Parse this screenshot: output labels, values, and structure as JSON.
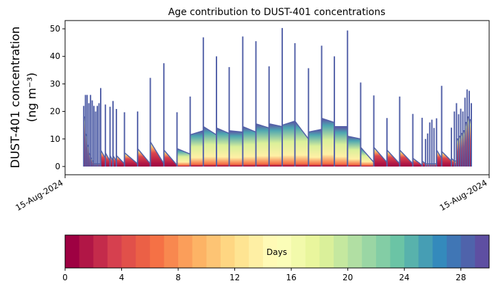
{
  "chart_data": {
    "type": "area",
    "title": "Age contribution to DUST-401 concentrations",
    "ylabel_line1": "DUST-401 concentration",
    "ylabel_line2": "(ng m⁻³)",
    "xlabel": "",
    "xlim": [
      0,
      100
    ],
    "ylim": [
      -3,
      53
    ],
    "yticks": [
      "0",
      "10",
      "20",
      "30",
      "40",
      "50"
    ],
    "ytick_values": [
      0,
      10,
      20,
      30,
      40,
      50
    ],
    "xticks": [
      "15-Aug-2024",
      "15-Aug-2024"
    ],
    "xtick_values": [
      0,
      100
    ],
    "grid": false,
    "series_note_spikes": [
      {
        "x": 4.4,
        "peak": 22,
        "bg_before": 19,
        "bg_after": 18,
        "mix": "young"
      },
      {
        "x": 4.8,
        "peak": 26,
        "bg_before": 18,
        "bg_after": 12,
        "mix": "young"
      },
      {
        "x": 5.2,
        "peak": 26,
        "bg_before": 11,
        "bg_after": 8,
        "mix": "young"
      },
      {
        "x": 5.6,
        "peak": 23,
        "bg_before": 7,
        "bg_after": 5,
        "mix": "young"
      },
      {
        "x": 6.0,
        "peak": 26,
        "bg_before": 4,
        "bg_after": 3,
        "mix": "young"
      },
      {
        "x": 6.4,
        "peak": 24,
        "bg_before": 3,
        "bg_after": 2,
        "mix": "young"
      },
      {
        "x": 6.8,
        "peak": 22,
        "bg_before": 2,
        "bg_after": 1,
        "mix": "young"
      },
      {
        "x": 7.2,
        "peak": 20,
        "bg_before": 1,
        "bg_after": 1,
        "mix": "young"
      },
      {
        "x": 7.6,
        "peak": 22,
        "bg_before": 1,
        "bg_after": 1,
        "mix": "young"
      },
      {
        "x": 8.0,
        "peak": 23,
        "bg_before": 1,
        "bg_after": 1,
        "mix": "young"
      },
      {
        "x": 8.4,
        "peak": 28.5,
        "bg_before": 1,
        "bg_after": 6,
        "mix": "young"
      },
      {
        "x": 9.5,
        "peak": 22.5,
        "bg_before": 3,
        "bg_after": 5,
        "mix": "young"
      },
      {
        "x": 10.6,
        "peak": 21.7,
        "bg_before": 2,
        "bg_after": 4,
        "mix": "young"
      },
      {
        "x": 11.3,
        "peak": 23.8,
        "bg_before": 2,
        "bg_after": 4,
        "mix": "young"
      },
      {
        "x": 12.1,
        "peak": 20.9,
        "bg_before": 2,
        "bg_after": 4,
        "mix": "young"
      },
      {
        "x": 14.0,
        "peak": 19.7,
        "bg_before": 1,
        "bg_after": 5,
        "mix": "young"
      },
      {
        "x": 17.1,
        "peak": 20,
        "bg_before": 1,
        "bg_after": 6.5,
        "mix": "young"
      },
      {
        "x": 20.1,
        "peak": 32.2,
        "bg_before": 1,
        "bg_after": 9,
        "mix": "young"
      },
      {
        "x": 23.3,
        "peak": 37.5,
        "bg_before": 1,
        "bg_after": 6,
        "mix": "young"
      },
      {
        "x": 26.4,
        "peak": 19.7,
        "bg_before": 0.5,
        "bg_after": 6.5,
        "mix": "aged"
      },
      {
        "x": 29.5,
        "peak": 25.4,
        "bg_before": 4.5,
        "bg_after": 11.5,
        "mix": "aged"
      },
      {
        "x": 32.6,
        "peak": 46.9,
        "bg_before": 13,
        "bg_after": 14.5,
        "mix": "aged"
      },
      {
        "x": 35.7,
        "peak": 40,
        "bg_before": 11.5,
        "bg_after": 14,
        "mix": "aged"
      },
      {
        "x": 38.7,
        "peak": 36.1,
        "bg_before": 12,
        "bg_after": 13,
        "mix": "aged"
      },
      {
        "x": 41.9,
        "peak": 47.2,
        "bg_before": 12.5,
        "bg_after": 14.5,
        "mix": "aged"
      },
      {
        "x": 45.0,
        "peak": 45.5,
        "bg_before": 12.5,
        "bg_after": 15.5,
        "mix": "aged"
      },
      {
        "x": 48.1,
        "peak": 36.4,
        "bg_before": 14,
        "bg_after": 15.5,
        "mix": "aged"
      },
      {
        "x": 51.2,
        "peak": 50.3,
        "bg_before": 14.5,
        "bg_after": 15,
        "mix": "aged"
      },
      {
        "x": 54.2,
        "peak": 44.8,
        "bg_before": 16.5,
        "bg_after": 16.5,
        "mix": "aged"
      },
      {
        "x": 57.4,
        "peak": 35.7,
        "bg_before": 10,
        "bg_after": 12.5,
        "mix": "aged"
      },
      {
        "x": 60.5,
        "peak": 43.9,
        "bg_before": 13.5,
        "bg_after": 17.5,
        "mix": "aged"
      },
      {
        "x": 63.5,
        "peak": 40,
        "bg_before": 16,
        "bg_after": 14.5,
        "mix": "aged"
      },
      {
        "x": 66.6,
        "peak": 49.4,
        "bg_before": 14.5,
        "bg_after": 11,
        "mix": "aged"
      },
      {
        "x": 69.7,
        "peak": 30.5,
        "bg_before": 10,
        "bg_after": 7,
        "mix": "aged"
      },
      {
        "x": 72.8,
        "peak": 25.8,
        "bg_before": 1.5,
        "bg_after": 7,
        "mix": "young"
      },
      {
        "x": 75.9,
        "peak": 17.6,
        "bg_before": 1.5,
        "bg_after": 6,
        "mix": "young"
      },
      {
        "x": 78.9,
        "peak": 25.4,
        "bg_before": 1,
        "bg_after": 6,
        "mix": "young"
      },
      {
        "x": 82.0,
        "peak": 19.1,
        "bg_before": 1,
        "bg_after": 3,
        "mix": "young"
      },
      {
        "x": 84.2,
        "peak": 17.7,
        "bg_before": 0.5,
        "bg_after": 2,
        "mix": "young"
      },
      {
        "x": 85.0,
        "peak": 10,
        "bg_before": 1,
        "bg_after": 1,
        "mix": "young"
      },
      {
        "x": 85.5,
        "peak": 12,
        "bg_before": 1,
        "bg_after": 1,
        "mix": "young"
      },
      {
        "x": 86.0,
        "peak": 16,
        "bg_before": 1,
        "bg_after": 1,
        "mix": "young"
      },
      {
        "x": 86.5,
        "peak": 17,
        "bg_before": 1,
        "bg_after": 1,
        "mix": "young"
      },
      {
        "x": 87.0,
        "peak": 14,
        "bg_before": 1,
        "bg_after": 1,
        "mix": "young"
      },
      {
        "x": 87.6,
        "peak": 17.5,
        "bg_before": 1,
        "bg_after": 6,
        "mix": "young"
      },
      {
        "x": 88.8,
        "peak": 29.3,
        "bg_before": 3,
        "bg_after": 5.5,
        "mix": "young"
      },
      {
        "x": 91.1,
        "peak": 14.1,
        "bg_before": 2,
        "bg_after": 3,
        "mix": "young"
      },
      {
        "x": 91.8,
        "peak": 20,
        "bg_before": 2,
        "bg_after": 2,
        "mix": "young"
      },
      {
        "x": 92.3,
        "peak": 23,
        "bg_before": 2,
        "bg_after": 10,
        "mix": "young"
      },
      {
        "x": 92.8,
        "peak": 19,
        "bg_before": 10,
        "bg_after": 11,
        "mix": "young"
      },
      {
        "x": 93.3,
        "peak": 21,
        "bg_before": 11,
        "bg_after": 12,
        "mix": "young"
      },
      {
        "x": 93.8,
        "peak": 20,
        "bg_before": 12,
        "bg_after": 13,
        "mix": "young"
      },
      {
        "x": 94.3,
        "peak": 25,
        "bg_before": 13,
        "bg_after": 16,
        "mix": "young"
      },
      {
        "x": 94.8,
        "peak": 28,
        "bg_before": 16,
        "bg_after": 18,
        "mix": "young"
      },
      {
        "x": 95.3,
        "peak": 27.5,
        "bg_before": 18,
        "bg_after": 17,
        "mix": "young"
      },
      {
        "x": 95.8,
        "peak": 23,
        "bg_before": 17,
        "bg_after": 17,
        "mix": "young"
      }
    ],
    "colorbar": {
      "label": "Days",
      "range": [
        0,
        30
      ],
      "n_colors": 30,
      "ticks": [
        "0",
        "4",
        "8",
        "12",
        "16",
        "20",
        "24",
        "28"
      ],
      "tick_values": [
        0,
        4,
        8,
        12,
        16,
        20,
        24,
        28
      ],
      "colormap_anchors": [
        "#9e0142",
        "#d53e4f",
        "#f46d43",
        "#fdae61",
        "#fee08b",
        "#ffffbf",
        "#e6f598",
        "#abdda4",
        "#66c2a5",
        "#3288bd",
        "#5e4fa2"
      ]
    },
    "spike_color": "#5361a8"
  }
}
